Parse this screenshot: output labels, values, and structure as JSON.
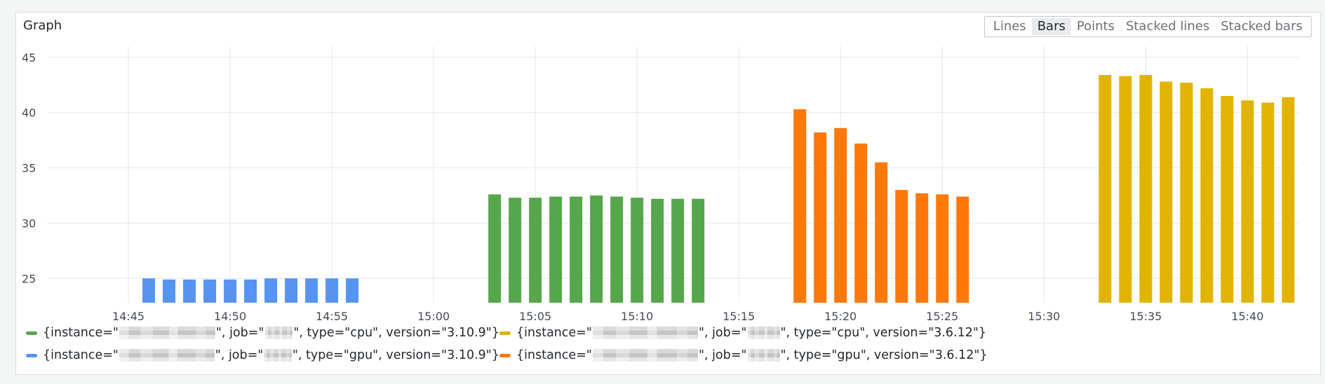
{
  "panel": {
    "title": "Graph"
  },
  "toggle": {
    "options": [
      "Lines",
      "Bars",
      "Points",
      "Stacked lines",
      "Stacked bars"
    ],
    "selected": "Bars"
  },
  "colors": {
    "green": "#56a64b",
    "blue": "#5794f2",
    "yellow": "#e0b400",
    "orange": "#ff780a",
    "grid": "#e6e7e9"
  },
  "legend": [
    {
      "color": "#56a64b",
      "before": "{instance=\"",
      "mid1": "\", job=\"",
      "mid2": "\", type=\"cpu\", version=\"3.10.9\"}"
    },
    {
      "color": "#e0b400",
      "before": "{instance=\"",
      "mid1": "\", job=\"",
      "mid2": "\", type=\"cpu\", version=\"3.6.12\"}"
    },
    {
      "color": "#5794f2",
      "before": "{instance=\"",
      "mid1": "\", job=\"",
      "mid2": "\", type=\"gpu\", version=\"3.10.9\"}"
    },
    {
      "color": "#ff780a",
      "before": "{instance=\"",
      "mid1": "\", job=\"",
      "mid2": "\", type=\"gpu\", version=\"3.6.12\"}"
    }
  ],
  "chart_data": {
    "type": "bar",
    "x_unit": "time (HH:MM)",
    "xlim": [
      "14:41",
      "15:42:30"
    ],
    "ylim": [
      22.8,
      46
    ],
    "y_ticks": [
      25,
      30,
      35,
      40,
      45
    ],
    "x_ticks": [
      "14:45",
      "14:50",
      "14:55",
      "15:00",
      "15:05",
      "15:10",
      "15:15",
      "15:20",
      "15:25",
      "15:30",
      "15:35",
      "15:40"
    ],
    "grid": true,
    "series": [
      {
        "color": "#5794f2",
        "x": [
          "14:46",
          "14:47",
          "14:48",
          "14:49",
          "14:50",
          "14:51",
          "14:52",
          "14:53",
          "14:54",
          "14:55",
          "14:56"
        ],
        "values": [
          25.0,
          24.9,
          24.9,
          24.9,
          24.9,
          24.9,
          25.0,
          25.0,
          25.0,
          25.0,
          25.0
        ]
      },
      {
        "color": "#56a64b",
        "x": [
          "15:03",
          "15:04",
          "15:05",
          "15:06",
          "15:07",
          "15:08",
          "15:09",
          "15:10",
          "15:11",
          "15:12",
          "15:13"
        ],
        "values": [
          32.6,
          32.3,
          32.3,
          32.4,
          32.4,
          32.5,
          32.4,
          32.3,
          32.2,
          32.2,
          32.2
        ]
      },
      {
        "color": "#ff780a",
        "x": [
          "15:18",
          "15:19",
          "15:20",
          "15:21",
          "15:22",
          "15:23",
          "15:24",
          "15:25",
          "15:26"
        ],
        "values": [
          40.3,
          38.2,
          38.6,
          37.2,
          35.5,
          33.0,
          32.7,
          32.6,
          32.4
        ]
      },
      {
        "color": "#e0b400",
        "x": [
          "15:33",
          "15:34",
          "15:35",
          "15:36",
          "15:37",
          "15:38",
          "15:39",
          "15:40",
          "15:41",
          "15:42"
        ],
        "values": [
          43.4,
          43.3,
          43.4,
          42.8,
          42.7,
          42.2,
          41.5,
          41.1,
          40.9,
          41.4
        ]
      }
    ]
  }
}
